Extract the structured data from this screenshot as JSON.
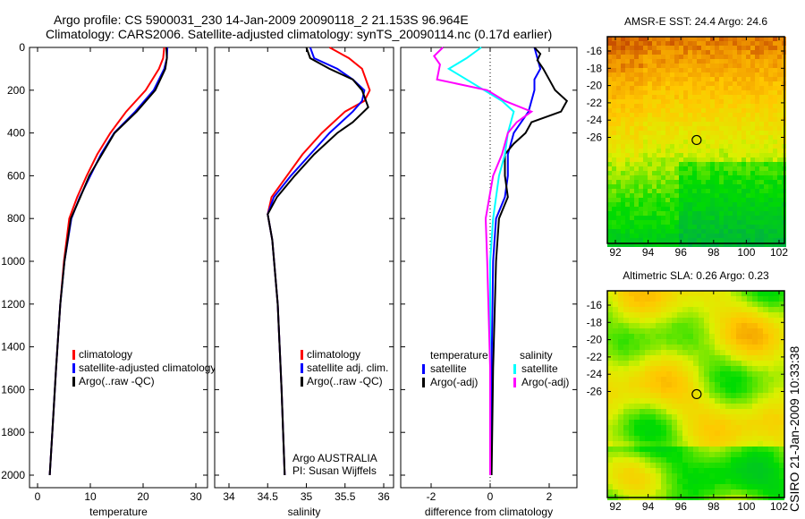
{
  "title_lines": [
    "Argo profile: CS 5900031_230 14-Jan-2009 20090118_2 21.153S 96.964E",
    "Climatology: CARS2006. Satellite-adjusted climatology: synTS_20090114.nc (0.17d earlier)"
  ],
  "side_text": "CSIRO 21-Jan-2009 10:33:38",
  "colors": {
    "climatology": "#ff0000",
    "satellite": "#0000ff",
    "argo": "#000000",
    "sal_sat": "#00ffff",
    "sal_argo": "#ff00ff"
  },
  "chart_data": [
    {
      "type": "line",
      "xlabel": "temperature",
      "ylabel": "",
      "xlim": [
        -1.5,
        32
      ],
      "ylim": [
        2000,
        0
      ],
      "xticks": [
        "0",
        "10",
        "20",
        "30"
      ],
      "xtick_values": [
        0,
        10,
        20,
        30
      ],
      "yticks": [
        "0",
        "200",
        "400",
        "600",
        "800",
        "1000",
        "1200",
        "1400",
        "1600",
        "1800",
        "2000"
      ],
      "legend": [
        "climatology",
        "satellite-adjusted climatology",
        "Argo(..raw -QC)"
      ],
      "series": [
        {
          "name": "climatology",
          "color": "climatology",
          "depth": [
            0,
            50,
            100,
            200,
            300,
            400,
            500,
            600,
            700,
            800,
            1000,
            1200,
            1500,
            1800,
            2000
          ],
          "values": [
            24,
            23.8,
            23,
            20.5,
            16.8,
            13.8,
            11.3,
            9.3,
            7.5,
            6,
            5,
            4.3,
            3.5,
            2.8,
            2.3
          ]
        },
        {
          "name": "satellite-adjusted climatology",
          "color": "satellite",
          "depth": [
            0,
            50,
            100,
            200,
            300,
            400,
            500,
            600,
            700,
            800,
            1000,
            1200,
            1500,
            1800,
            2000
          ],
          "values": [
            24.6,
            24.5,
            24,
            22,
            18.5,
            14.5,
            12,
            10,
            8,
            6.4,
            5.1,
            4.3,
            3.5,
            2.8,
            2.3
          ]
        },
        {
          "name": "Argo(..raw -QC)",
          "color": "argo",
          "depth": [
            0,
            50,
            100,
            200,
            300,
            400,
            500,
            600,
            700,
            800,
            1000,
            1200,
            1500,
            1800,
            2000
          ],
          "values": [
            24.4,
            24.5,
            24.2,
            22.3,
            18.8,
            14.6,
            12.2,
            9.8,
            8.1,
            6.3,
            5.1,
            4.3,
            3.5,
            2.8,
            2.3
          ]
        }
      ]
    },
    {
      "type": "line",
      "xlabel": "salinity",
      "xlim": [
        33.8,
        36.3
      ],
      "ylim": [
        2000,
        0
      ],
      "xticks": [
        "34",
        "34.5",
        "35",
        "35.5",
        "36"
      ],
      "xtick_values": [
        34,
        34.5,
        35,
        35.5,
        36
      ],
      "legend": [
        "climatology",
        "satellite adj. clim.",
        "Argo(..raw -QC)"
      ],
      "annotation": [
        "Argo AUSTRALIA",
        "PI: Susan Wijffels"
      ],
      "series": [
        {
          "name": "climatology",
          "color": "climatology",
          "depth": [
            0,
            50,
            100,
            200,
            250,
            300,
            400,
            500,
            600,
            700,
            780,
            900,
            1200,
            1600,
            2000
          ],
          "values": [
            35.3,
            35.55,
            35.72,
            35.82,
            35.75,
            35.5,
            35.2,
            34.95,
            34.75,
            34.55,
            34.5,
            34.56,
            34.63,
            34.68,
            34.72
          ]
        },
        {
          "name": "satellite adj. clim.",
          "color": "satellite",
          "depth": [
            0,
            50,
            100,
            150,
            200,
            250,
            300,
            400,
            500,
            600,
            700,
            780,
            900,
            1200,
            1600,
            2000
          ],
          "values": [
            35.05,
            35.1,
            35.4,
            35.6,
            35.75,
            35.72,
            35.6,
            35.3,
            35.05,
            34.8,
            34.58,
            34.5,
            34.56,
            34.63,
            34.68,
            34.72
          ]
        },
        {
          "name": "Argo(..raw -QC)",
          "color": "argo",
          "depth": [
            0,
            50,
            100,
            150,
            200,
            280,
            350,
            400,
            500,
            600,
            700,
            780,
            900,
            1200,
            1600,
            2000
          ],
          "values": [
            35.0,
            35.05,
            35.3,
            35.6,
            35.72,
            35.8,
            35.6,
            35.4,
            35.1,
            34.85,
            34.62,
            34.5,
            34.56,
            34.63,
            34.68,
            34.72
          ]
        }
      ]
    },
    {
      "type": "line",
      "xlabel": "difference from climatology",
      "xlim": [
        -3,
        3
      ],
      "ylim": [
        2000,
        0
      ],
      "xticks": [
        "-2",
        "0",
        "2"
      ],
      "xtick_values": [
        -2,
        0,
        2
      ],
      "legend_left": {
        "title": "temperature",
        "items": [
          "satellite",
          "Argo(-adj)"
        ]
      },
      "legend_right": {
        "title": "salinity",
        "items": [
          "satellite",
          "Argo(-adj)"
        ]
      },
      "series": [
        {
          "name": "temperature satellite",
          "color": "satellite",
          "depth": [
            0,
            50,
            100,
            150,
            200,
            300,
            400,
            500,
            600,
            700,
            800,
            1000,
            1500,
            2000
          ],
          "values": [
            1.5,
            1.6,
            1.7,
            1.5,
            1.5,
            1.3,
            0.8,
            0.6,
            0.6,
            0.5,
            0.2,
            0.1,
            0.05,
            0.02
          ]
        },
        {
          "name": "temperature Argo(-adj)",
          "color": "argo",
          "depth": [
            0,
            30,
            60,
            100,
            150,
            200,
            250,
            300,
            350,
            400,
            450,
            500,
            600,
            700,
            800,
            1000,
            1500,
            2000
          ],
          "values": [
            1.5,
            1.7,
            1.6,
            1.8,
            2.0,
            2.2,
            2.6,
            2.4,
            1.4,
            1.2,
            0.8,
            0.5,
            0.5,
            0.6,
            0.3,
            0.2,
            0.1,
            0.05
          ]
        },
        {
          "name": "salinity satellite",
          "color": "sal_sat",
          "depth": [
            0,
            50,
            100,
            200,
            250,
            300,
            400,
            500,
            600,
            800,
            1000,
            1500,
            2000
          ],
          "values": [
            -0.3,
            -0.8,
            -1.4,
            -0.2,
            0.4,
            0.8,
            0.6,
            0.5,
            0.3,
            0.1,
            0,
            0,
            0
          ]
        },
        {
          "name": "salinity Argo(-adj)",
          "color": "sal_argo",
          "depth": [
            0,
            40,
            80,
            150,
            200,
            250,
            300,
            350,
            400,
            500,
            600,
            800,
            1000,
            1500,
            2000
          ],
          "values": [
            -1.6,
            -1.9,
            -1.7,
            -1.8,
            -0.1,
            0.5,
            1.4,
            0.9,
            0.6,
            0.4,
            0.1,
            -0.15,
            -0.1,
            0,
            0
          ]
        }
      ]
    },
    {
      "type": "heatmap",
      "title": "AMSR-E SST: 24.4 Argo: 24.6",
      "xticks": [
        "92",
        "94",
        "96",
        "98",
        "100",
        "102"
      ],
      "yticks": [
        "-16",
        "-18",
        "-20",
        "-22",
        "-24",
        "-26"
      ],
      "marker": [
        96.964,
        -21.153
      ]
    },
    {
      "type": "heatmap",
      "title": "Altimetric SLA: 0.26 Argo: 0.23",
      "xticks": [
        "92",
        "94",
        "96",
        "98",
        "100",
        "102"
      ],
      "yticks": [
        "-16",
        "-18",
        "-20",
        "-22",
        "-24",
        "-26"
      ],
      "marker": [
        96.964,
        -21.153
      ]
    }
  ]
}
